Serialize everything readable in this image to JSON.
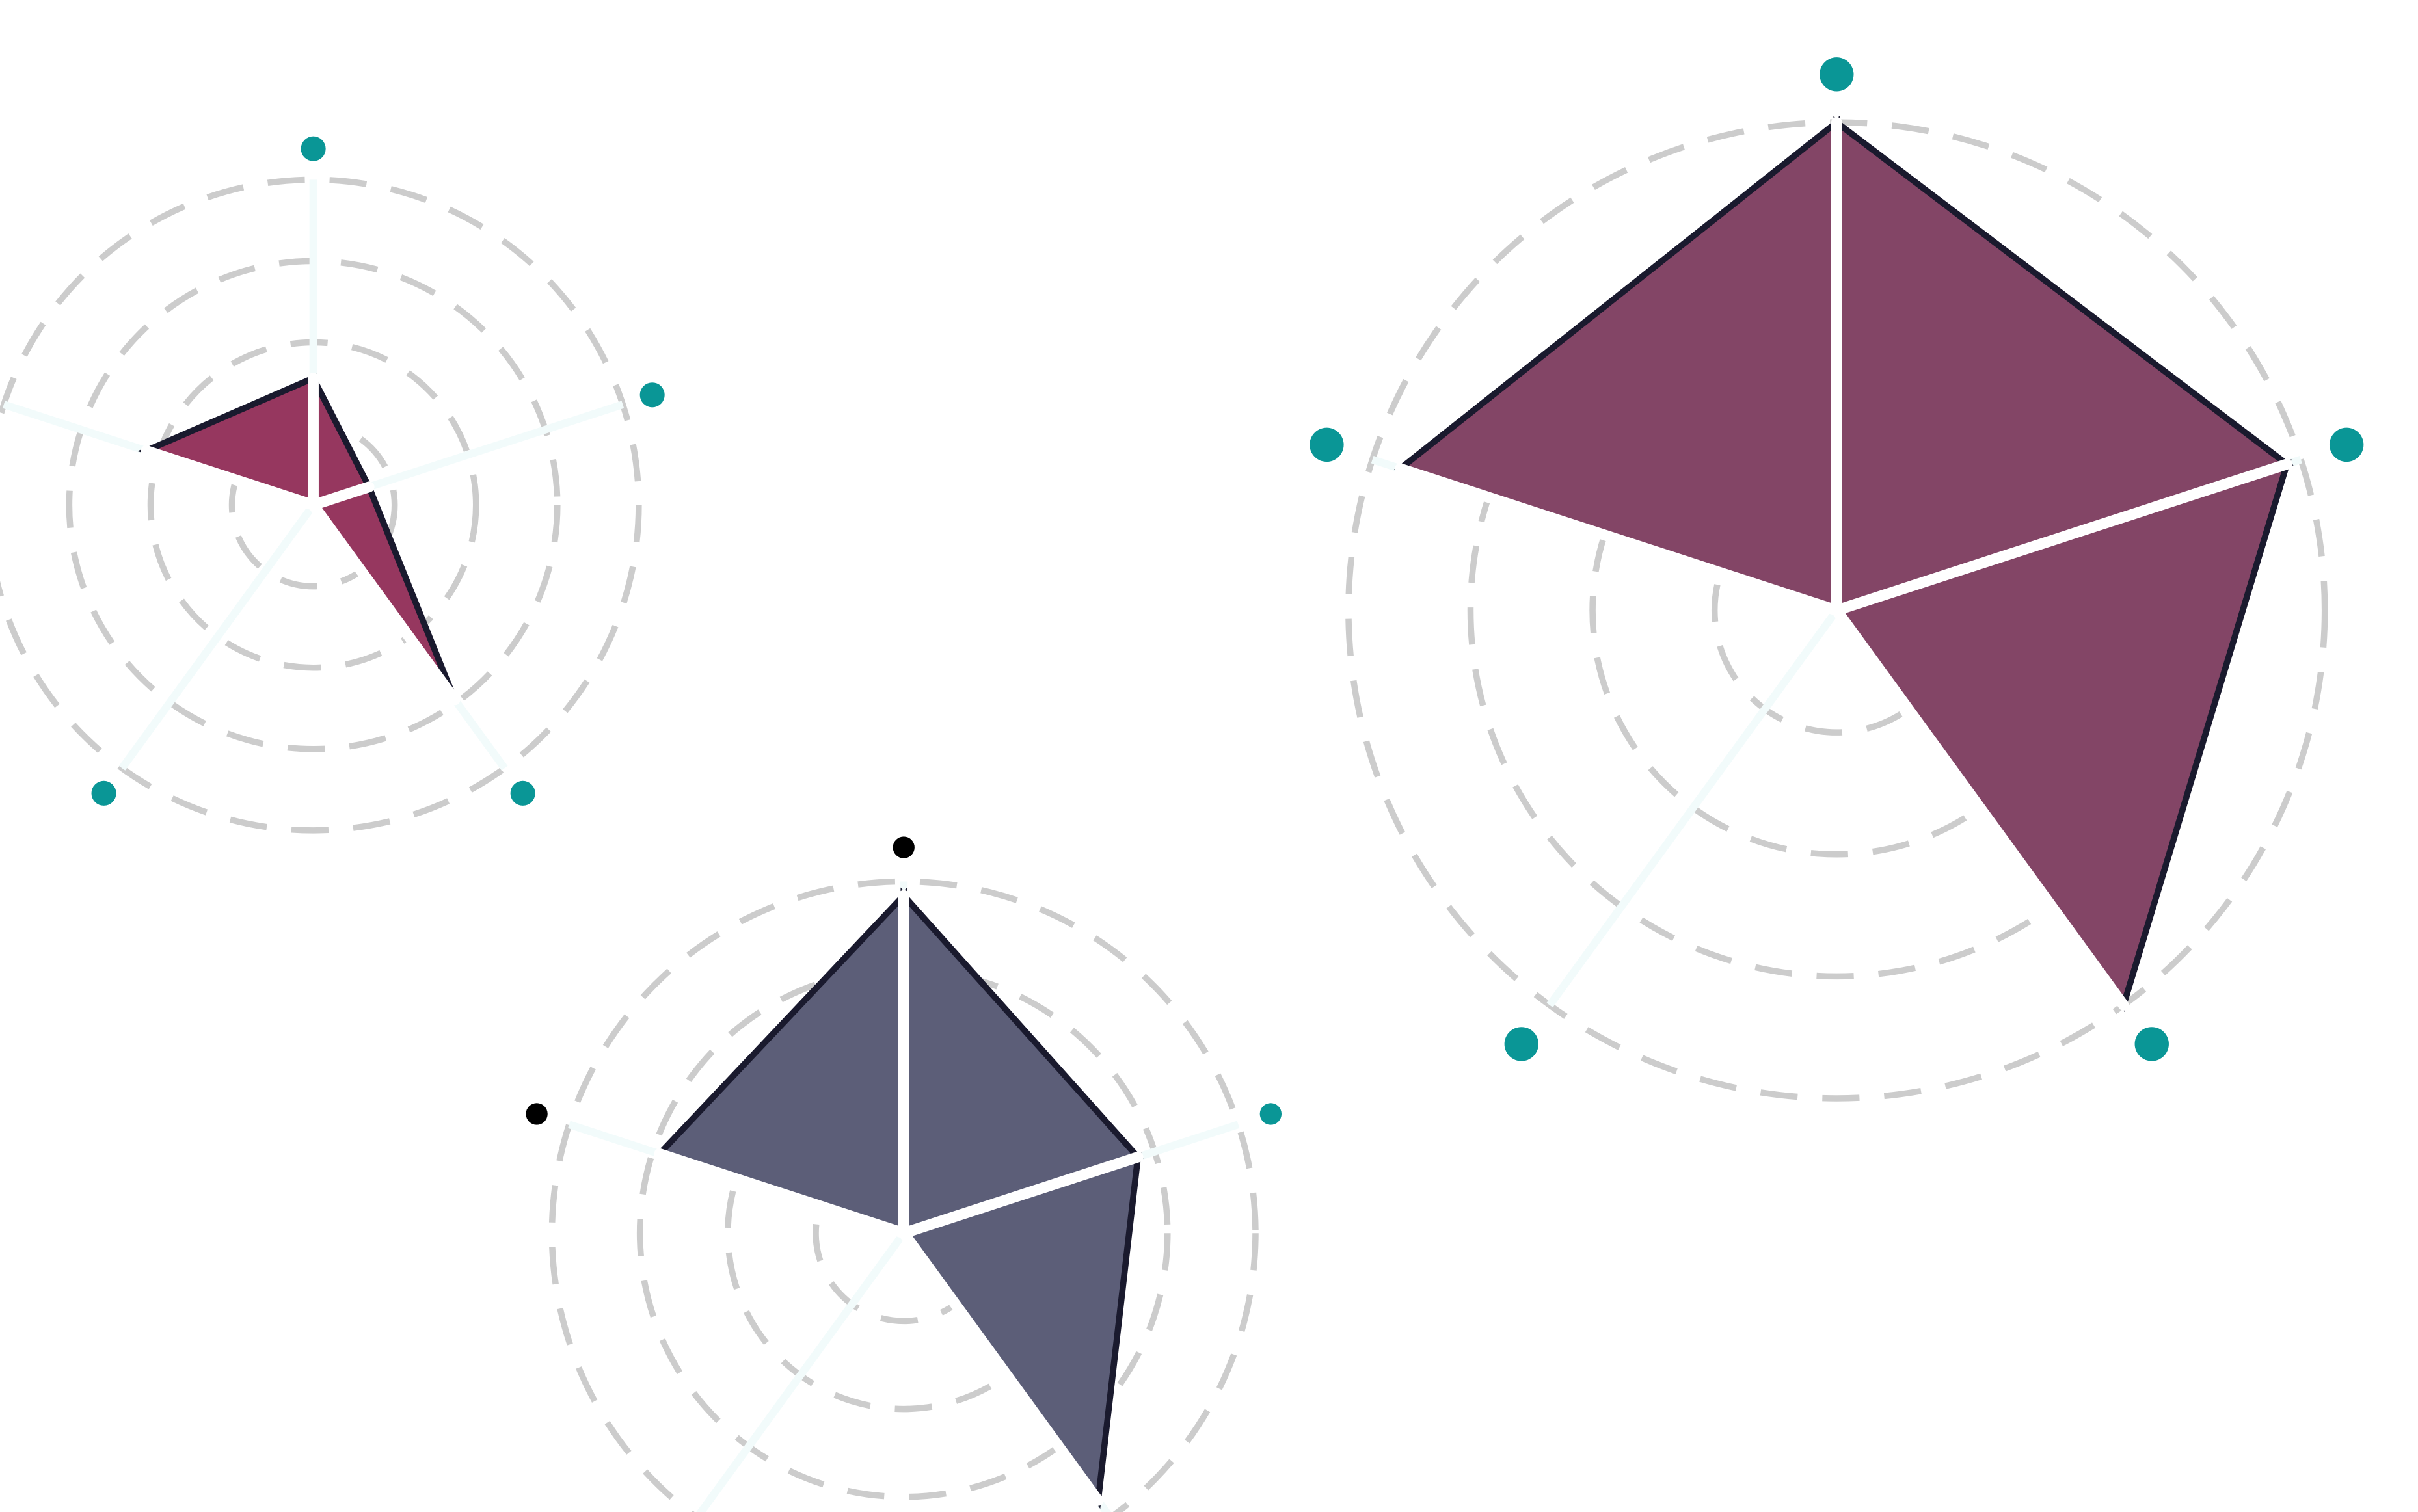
{
  "chart_data": [
    {
      "type": "radar",
      "title": "",
      "axes": [
        "",
        "",
        "",
        "",
        ""
      ],
      "rlim": [
        0,
        1
      ],
      "grid_rings": 4,
      "polygon_color": "#96375f",
      "values": [
        0.39,
        0.18,
        0.74,
        0.0,
        0.54
      ],
      "axis_marker_colors": [
        "#0a9696",
        "#0a9696",
        "#0a9696",
        "#0a9696",
        "#0a9696"
      ]
    },
    {
      "type": "radar",
      "title": "",
      "axes": [
        "",
        "",
        "",
        "",
        ""
      ],
      "rlim": [
        0,
        1
      ],
      "grid_rings": 4,
      "polygon_color": "#5c5e78",
      "values": [
        0.96,
        0.7,
        0.94,
        0.0,
        0.73
      ],
      "axis_marker_colors": [
        "#000000",
        "#0a9696",
        "#000000",
        "#000000",
        "#000000"
      ]
    },
    {
      "type": "radar",
      "title": "",
      "axes": [
        "",
        "",
        "",
        "",
        ""
      ],
      "rlim": [
        0,
        1
      ],
      "grid_rings": 4,
      "polygon_color": "#834566",
      "values": [
        1.0,
        0.97,
        1.0,
        0.0,
        0.94
      ],
      "axis_marker_colors": [
        "#0a9696",
        "#0a9696",
        "#0a9696",
        "#0a9696",
        "#0a9696"
      ]
    }
  ]
}
